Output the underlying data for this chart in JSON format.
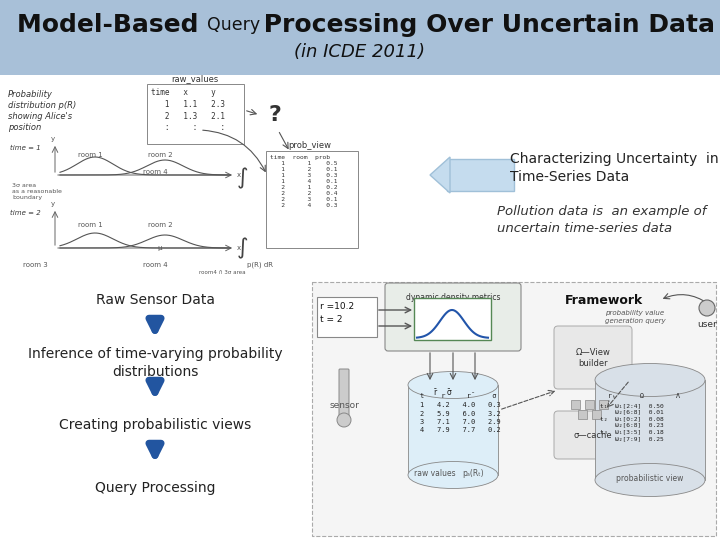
{
  "title_part1": "Model-Based ",
  "title_part2": "Query",
  "title_part3": " Processing Over Uncertain Data",
  "title_subtitle": "(in ICDE 2011)",
  "header_bg": "#a8c0d8",
  "slide_bg": "#ffffff",
  "arrow_color": "#2255a0",
  "flow_items": [
    "Raw Sensor Data",
    "Inference of time-varying probability\ndistributions",
    "Creating probabilistic views",
    "Query Processing"
  ],
  "right_text1": "Characterizing Uncertainty  in\nTime-Series Data",
  "right_text2": "Pollution data is  an example of\nuncertain time-series data"
}
